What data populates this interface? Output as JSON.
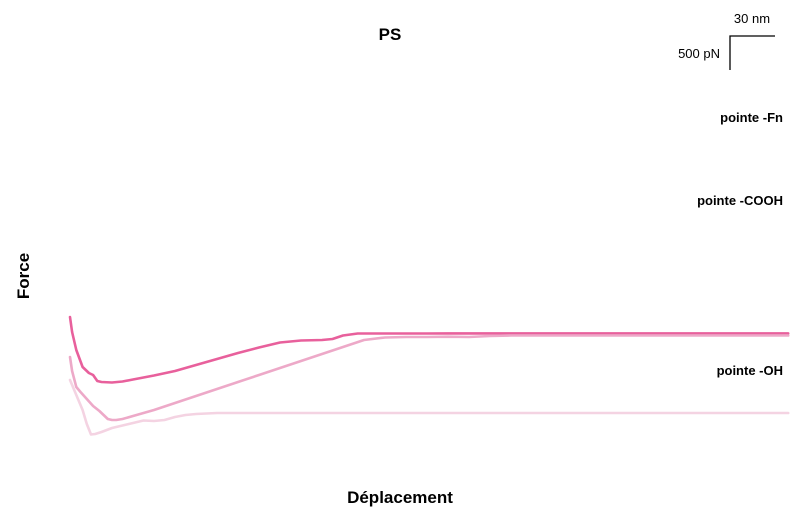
{
  "chart_data": {
    "type": "line",
    "title": "PS",
    "xlabel": "Déplacement",
    "ylabel": "Force",
    "grid": false,
    "legend": "none",
    "scale_bar": {
      "x_label": "30 nm",
      "y_label": "500 pN",
      "x_value_nm": 30,
      "y_value_pN": 500
    },
    "xlim": [
      0,
      342
    ],
    "series": [
      {
        "name": "pointe -Fn",
        "color": "#e8609c",
        "x": [
          0,
          1,
          3,
          6,
          9,
          11,
          13,
          15,
          20,
          25,
          30,
          40,
          50,
          60,
          70,
          80,
          90,
          100,
          110,
          120,
          125,
          130,
          137,
          142,
          148,
          154,
          160,
          170,
          180,
          190,
          200,
          210,
          220,
          230,
          240,
          250,
          260,
          270,
          280,
          290,
          300,
          310,
          320,
          330,
          342
        ],
        "y": [
          1630,
          1480,
          1300,
          1130,
          1070,
          1050,
          990,
          980,
          975,
          985,
          1005,
          1045,
          1090,
          1150,
          1210,
          1270,
          1325,
          1375,
          1395,
          1400,
          1410,
          1445,
          1465,
          1465,
          1465,
          1465,
          1465,
          1465,
          1466,
          1466,
          1466,
          1466,
          1466,
          1466,
          1466,
          1466,
          1466,
          1466,
          1466,
          1466,
          1466,
          1466,
          1466,
          1466,
          1466
        ]
      },
      {
        "name": "pointe -COOH",
        "color": "#eda9c8",
        "x": [
          0,
          1,
          3,
          5,
          8,
          11,
          14,
          16,
          18,
          20,
          22,
          25,
          30,
          40,
          50,
          60,
          70,
          80,
          90,
          100,
          110,
          120,
          130,
          140,
          150,
          160,
          170,
          180,
          190,
          200,
          210,
          220,
          230,
          240,
          250,
          260,
          270,
          280,
          290,
          300,
          310,
          320,
          330,
          342
        ],
        "y": [
          1230,
          1090,
          930,
          880,
          810,
          740,
          690,
          650,
          610,
          600,
          600,
          610,
          640,
          700,
          770,
          840,
          910,
          980,
          1050,
          1120,
          1190,
          1260,
          1330,
          1400,
          1425,
          1430,
          1430,
          1433,
          1430,
          1440,
          1445,
          1445,
          1445,
          1445,
          1445,
          1445,
          1445,
          1445,
          1445,
          1445,
          1445,
          1445,
          1445,
          1445
        ]
      },
      {
        "name": "pointe -OH",
        "color": "#f4d3e2",
        "x": [
          0,
          1,
          2,
          4,
          6,
          8,
          10,
          12,
          15,
          20,
          25,
          30,
          35,
          40,
          45,
          50,
          55,
          60,
          65,
          70,
          80,
          90,
          100,
          110,
          120,
          130,
          140,
          150,
          160,
          170,
          180,
          190,
          200,
          210,
          220,
          230,
          240,
          250,
          260,
          270,
          280,
          290,
          300,
          310,
          320,
          330,
          342
        ],
        "y": [
          1000,
          950,
          900,
          800,
          700,
          560,
          455,
          460,
          480,
          520,
          545,
          570,
          595,
          590,
          600,
          630,
          650,
          660,
          665,
          670,
          670,
          670,
          670,
          670,
          670,
          670,
          670,
          670,
          670,
          670,
          670,
          670,
          670,
          670,
          670,
          670,
          670,
          670,
          670,
          670,
          670,
          670,
          670,
          670,
          670,
          670,
          670
        ]
      }
    ]
  }
}
